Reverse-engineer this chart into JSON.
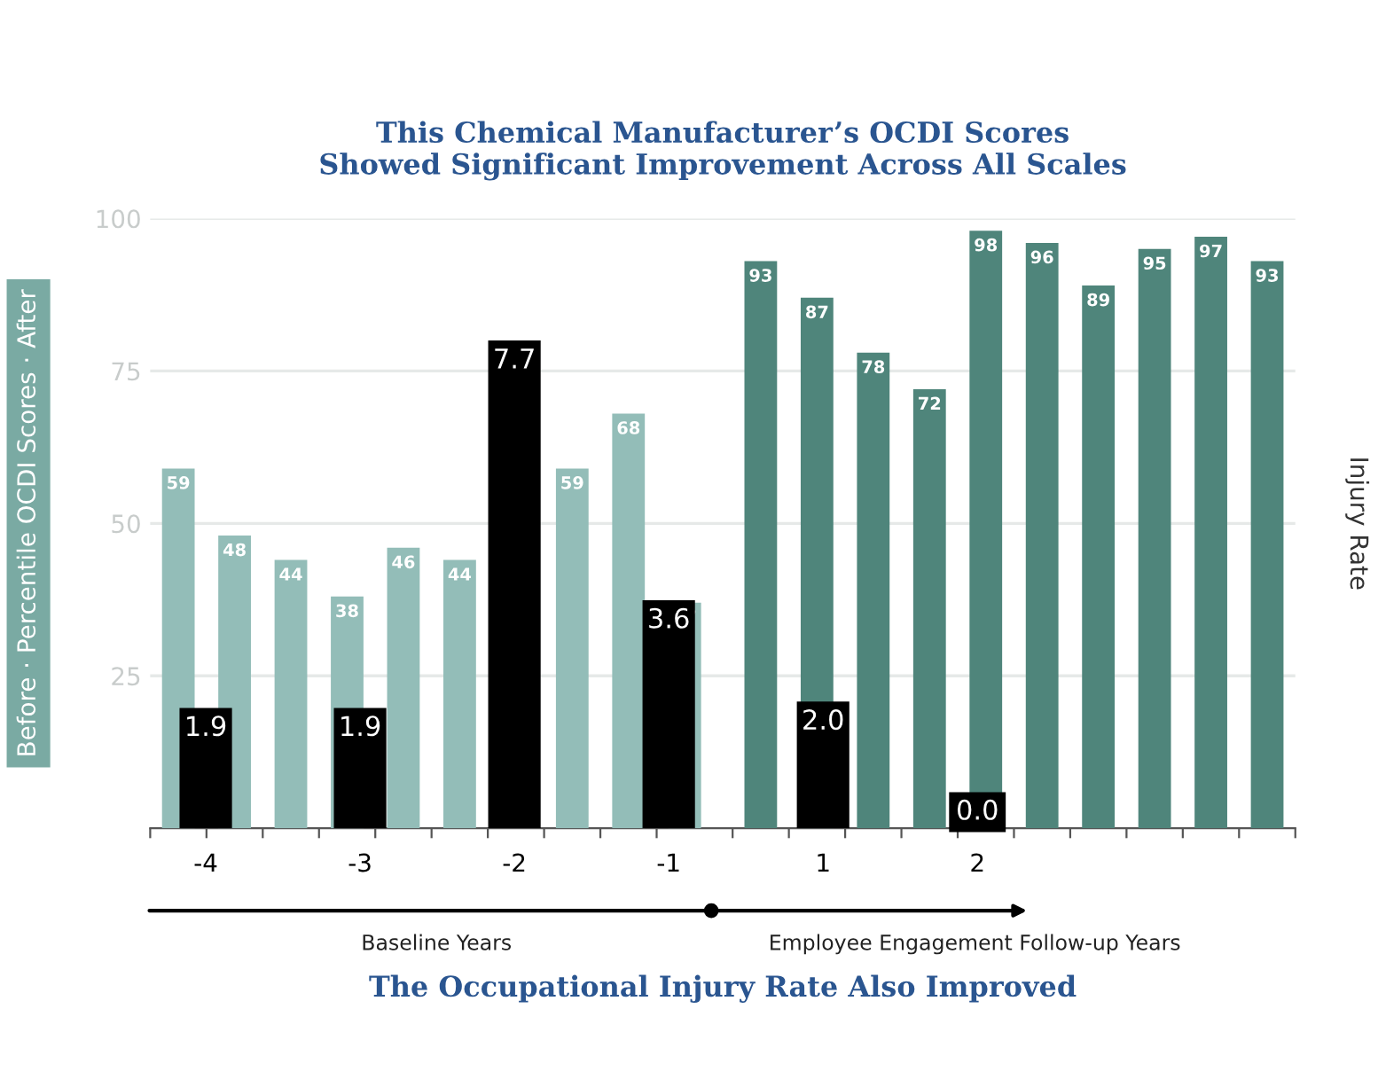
{
  "chart_data": [
    {
      "type": "bar",
      "title": "This Chemical Manufacturer’s OCDI Scores\nShowed Significant Improvement Across All Scales",
      "ylabel": "Before · Percentile OCDI Scores · After",
      "categories": [
        null,
        null,
        null,
        null,
        null,
        null,
        null,
        null,
        null,
        null,
        null,
        null,
        null,
        null,
        null,
        null,
        null,
        null,
        null,
        null
      ],
      "values": [
        59,
        48,
        44,
        38,
        46,
        44,
        null,
        59,
        68,
        37,
        93,
        87,
        78,
        72,
        98,
        96,
        89,
        95,
        97,
        93
      ],
      "colors": [
        "#93bdb8",
        "#93bdb8",
        "#93bdb8",
        "#93bdb8",
        "#93bdb8",
        "#93bdb8",
        "#93bdb8",
        "#93bdb8",
        "#93bdb8",
        "#93bdb8",
        "#4f857b",
        "#4f857b",
        "#4f857b",
        "#4f857b",
        "#4f857b",
        "#4f857b",
        "#4f857b",
        "#4f857b",
        "#4f857b",
        "#4f857b"
      ],
      "ylim": [
        0,
        100
      ],
      "yticks": [
        25,
        50,
        75,
        100
      ],
      "grid": "y",
      "data_labels": true,
      "tick_labels": "y"
    },
    {
      "type": "bar",
      "title": "The Occupational Injury Rate Also Improved",
      "ylabel": "Injury Rate",
      "categories": [
        "-4",
        "-3",
        "-2",
        "-1",
        "1",
        "2"
      ],
      "values": [
        1.9,
        1.9,
        7.7,
        3.6,
        2.0,
        0.0
      ],
      "value_labels": [
        "1.9",
        "1.9",
        "7.7",
        "3.6",
        "2.0",
        "0.0"
      ],
      "color": "#000000",
      "tick_labels": "x",
      "annotations": [
        "Baseline Years",
        "Employee Engagement Follow-up Years"
      ]
    }
  ]
}
